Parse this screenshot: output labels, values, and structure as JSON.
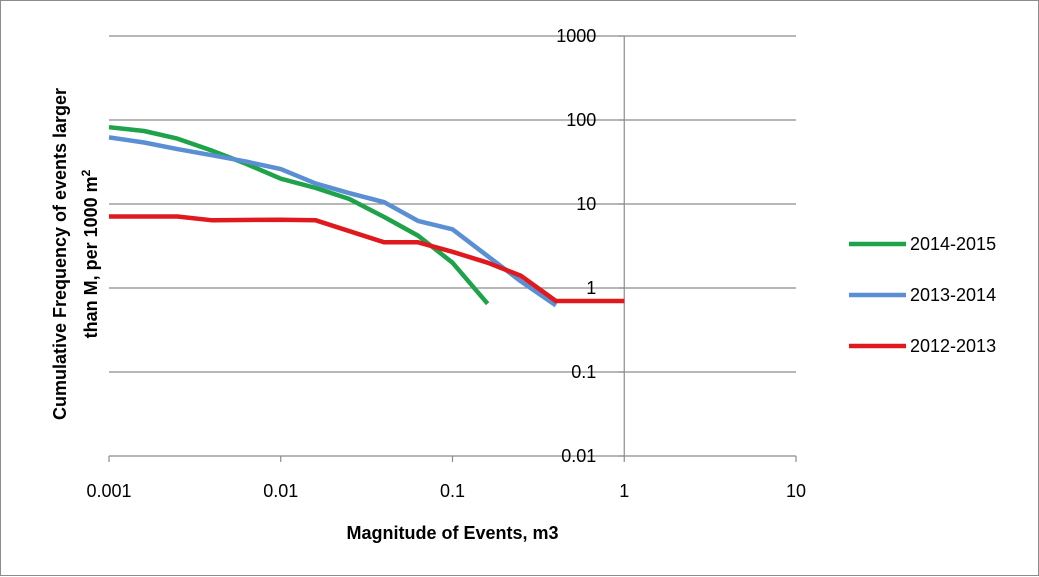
{
  "chart_data": {
    "type": "line",
    "title": "",
    "xlabel": "Magnitude of Events, m3",
    "ylabel_line1": "Cumulative Frequency of events larger",
    "ylabel_line2": "than M, per 1000 m",
    "ylabel_sup": "2",
    "x_scale": "log",
    "y_scale": "log",
    "xlim": [
      0.001,
      10
    ],
    "ylim": [
      0.01,
      1000
    ],
    "x_ticks": [
      "0.001",
      "0.01",
      "0.1",
      "1",
      "10"
    ],
    "y_ticks": [
      "1000",
      "100",
      "10",
      "1",
      "0.1",
      "0.01"
    ],
    "grid": "horizontal major gridlines",
    "legend_position": "right",
    "series": [
      {
        "name": "2014-2015",
        "color": "#1fa34a",
        "points": [
          [
            0.001,
            82
          ],
          [
            0.0016,
            74
          ],
          [
            0.0025,
            60
          ],
          [
            0.004,
            43
          ],
          [
            0.0063,
            30
          ],
          [
            0.01,
            20
          ],
          [
            0.016,
            15.5
          ],
          [
            0.025,
            11.5
          ],
          [
            0.04,
            7
          ],
          [
            0.063,
            4.2
          ],
          [
            0.1,
            2
          ],
          [
            0.16,
            0.65
          ]
        ]
      },
      {
        "name": "2013-2014",
        "color": "#5b8fd4",
        "points": [
          [
            0.001,
            62
          ],
          [
            0.0016,
            54
          ],
          [
            0.0025,
            45
          ],
          [
            0.004,
            38
          ],
          [
            0.0063,
            32
          ],
          [
            0.01,
            26
          ],
          [
            0.016,
            17.5
          ],
          [
            0.025,
            13.5
          ],
          [
            0.04,
            10.5
          ],
          [
            0.063,
            6.3
          ],
          [
            0.1,
            5
          ],
          [
            0.16,
            2.4
          ],
          [
            0.25,
            1.2
          ],
          [
            0.4,
            0.62
          ]
        ]
      },
      {
        "name": "2012-2013",
        "color": "#e0191f",
        "points": [
          [
            0.001,
            7.1
          ],
          [
            0.0025,
            7.1
          ],
          [
            0.004,
            6.4
          ],
          [
            0.01,
            6.5
          ],
          [
            0.016,
            6.4
          ],
          [
            0.04,
            3.5
          ],
          [
            0.063,
            3.5
          ],
          [
            0.1,
            2.7
          ],
          [
            0.16,
            2
          ],
          [
            0.25,
            1.4
          ],
          [
            0.4,
            0.7
          ],
          [
            0.63,
            0.7
          ],
          [
            1,
            0.7
          ]
        ]
      }
    ]
  }
}
